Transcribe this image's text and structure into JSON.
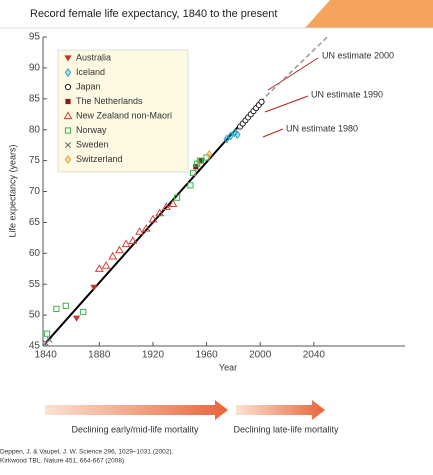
{
  "chart_data": {
    "type": "scatter",
    "title": "Record female life expectancy, 1840 to the present",
    "x_label": "Year",
    "y_label": "Life expectancy (years)",
    "xlim": [
      1838,
      2108
    ],
    "ylim": [
      45,
      95
    ],
    "xticks": [
      1840,
      1880,
      1920,
      1960,
      2000,
      2040
    ],
    "yticks": [
      45,
      50,
      55,
      60,
      65,
      70,
      75,
      80,
      85,
      90,
      95
    ],
    "series": [
      {
        "name": "Australia",
        "color": "#c0392b",
        "marker": "triangle-down",
        "x": [
          1863,
          1876
        ],
        "values": [
          49.5,
          54.5
        ]
      },
      {
        "name": "Iceland",
        "color": "#2aa7c9",
        "marker": "diamond",
        "x": [
          1975,
          1978,
          1981,
          1983
        ],
        "values": [
          78.5,
          79,
          79.5,
          79.2
        ]
      },
      {
        "name": "Japan",
        "color": "#222222",
        "marker": "circle",
        "x": [
          1985,
          1987,
          1989,
          1991,
          1993,
          1995,
          1997,
          1999,
          2001
        ],
        "values": [
          80.5,
          81,
          81.5,
          82,
          82.5,
          83,
          83.5,
          84,
          84.5
        ]
      },
      {
        "name": "The Netherlands",
        "color": "#8b1a1a",
        "marker": "square-filled",
        "x": [
          1952,
          1956
        ],
        "values": [
          74,
          75
        ]
      },
      {
        "name": "New Zealand non-Maori",
        "color": "#d9413b",
        "marker": "triangle-up",
        "x": [
          1880,
          1885,
          1890,
          1895,
          1900,
          1905,
          1910,
          1915,
          1920,
          1925,
          1930,
          1935
        ],
        "values": [
          57.5,
          58,
          59.5,
          60.5,
          61.5,
          62,
          63.5,
          64,
          65.5,
          66.5,
          67.5,
          68
        ]
      },
      {
        "name": "Norway",
        "color": "#39b54a",
        "marker": "square",
        "x": [
          1841,
          1848,
          1855,
          1868,
          1938,
          1948,
          1950,
          1953,
          1955,
          1960
        ],
        "values": [
          47,
          51,
          51.5,
          50.5,
          69,
          71,
          73,
          74.5,
          75,
          75.5
        ]
      },
      {
        "name": "Sweden",
        "color": "#666666",
        "marker": "cross",
        "x": [
          1840,
          1843
        ],
        "values": [
          45.5,
          46
        ]
      },
      {
        "name": "Switzerland",
        "color": "#e8a33c",
        "marker": "diamond",
        "x": [
          1962
        ],
        "values": [
          76
        ]
      }
    ],
    "trend": {
      "color": "#000000",
      "x": [
        1840,
        2000
      ],
      "values": [
        45.5,
        84.5
      ]
    },
    "projection": {
      "color": "#999999",
      "x": [
        2000,
        2050
      ],
      "values": [
        84.5,
        95
      ]
    },
    "annotations": [
      "UN estimate 2000",
      "UN estimate 1990",
      "UN estimate 1980"
    ],
    "arrows": [
      "Declining early/mid-life mortality",
      "Declining late-life mortality"
    ],
    "sources": [
      "Deppen, J. & Vaupel, J. W. Science 296, 1029–1031 (2002).",
      "Kirkwood TBL. Nature 451, 664-667 (2008)"
    ]
  }
}
